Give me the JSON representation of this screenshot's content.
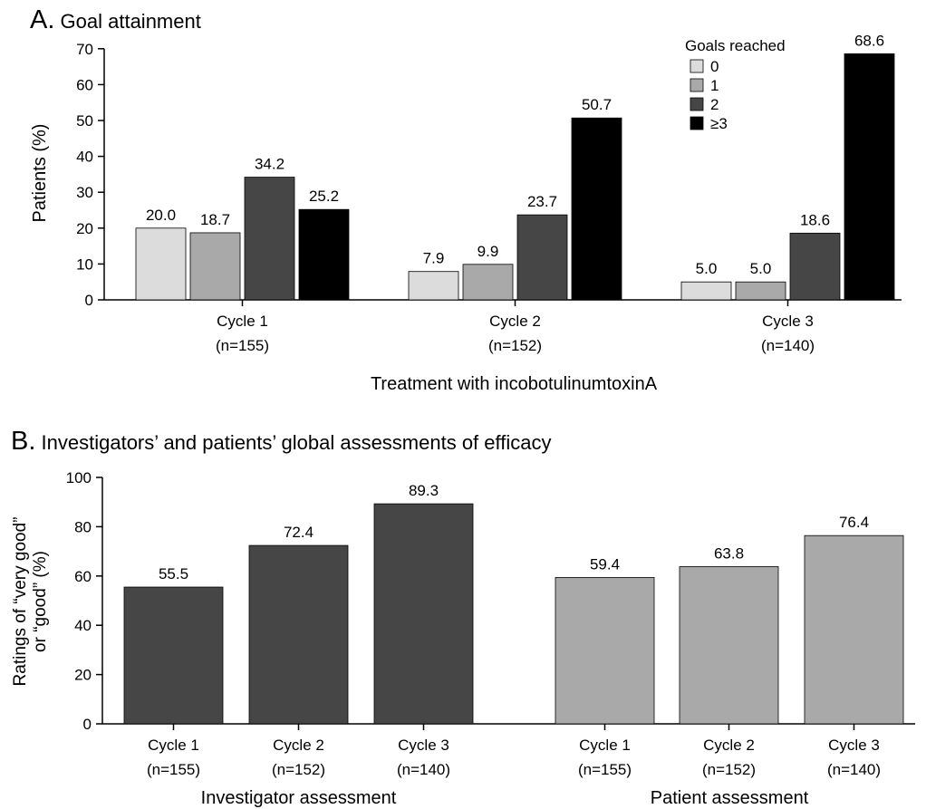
{
  "chart_data": [
    {
      "type": "bar",
      "panel_letter": "A.",
      "title": "Goal attainment",
      "ylabel": "Patients (%)",
      "xlabel": "Treatment with incobotulinumtoxinA",
      "ylim": [
        0,
        70
      ],
      "yticks": [
        "0",
        "10",
        "20",
        "30",
        "40",
        "50",
        "60",
        "70"
      ],
      "categories": [
        {
          "label": "Cycle 1",
          "n": "(n=155)"
        },
        {
          "label": "Cycle 2",
          "n": "(n=152)"
        },
        {
          "label": "Cycle 3",
          "n": "(n=140)"
        }
      ],
      "legend": {
        "title": "Goals reached",
        "position": "top-right"
      },
      "series": [
        {
          "name": "0",
          "color": "#dcdcdc",
          "values": [
            20.0,
            7.9,
            5.0
          ],
          "labels": [
            "20.0",
            "7.9",
            "5.0"
          ]
        },
        {
          "name": "1",
          "color": "#a9a9a9",
          "values": [
            18.7,
            9.9,
            5.0
          ],
          "labels": [
            "18.7",
            "9.9",
            "5.0"
          ]
        },
        {
          "name": "2",
          "color": "#464646",
          "values": [
            34.2,
            23.7,
            18.6
          ],
          "labels": [
            "34.2",
            "23.7",
            "18.6"
          ]
        },
        {
          "name": "≥3",
          "color": "#000000",
          "values": [
            25.2,
            50.7,
            68.6
          ],
          "labels": [
            "25.2",
            "50.7",
            "68.6"
          ]
        }
      ],
      "grid": false
    },
    {
      "type": "bar",
      "panel_letter": "B.",
      "title": "Investigators’ and patients’ global assessments of efficacy",
      "ylabel_lines": [
        "Ratings of “very good”",
        "or “good” (%)"
      ],
      "ylim": [
        0,
        100
      ],
      "yticks": [
        "0",
        "20",
        "40",
        "60",
        "80",
        "100"
      ],
      "groups": [
        {
          "name": "Investigator assessment",
          "color": "#464646",
          "categories": [
            {
              "label": "Cycle 1",
              "n": "(n=155)"
            },
            {
              "label": "Cycle 2",
              "n": "(n=152)"
            },
            {
              "label": "Cycle 3",
              "n": "(n=140)"
            }
          ],
          "values": [
            55.5,
            72.4,
            89.3
          ],
          "labels": [
            "55.5",
            "72.4",
            "89.3"
          ]
        },
        {
          "name": "Patient assessment",
          "color": "#a9a9a9",
          "categories": [
            {
              "label": "Cycle 1",
              "n": "(n=155)"
            },
            {
              "label": "Cycle 2",
              "n": "(n=152)"
            },
            {
              "label": "Cycle 3",
              "n": "(n=140)"
            }
          ],
          "values": [
            59.4,
            63.8,
            76.4
          ],
          "labels": [
            "59.4",
            "63.8",
            "76.4"
          ]
        }
      ],
      "grid": false
    }
  ]
}
